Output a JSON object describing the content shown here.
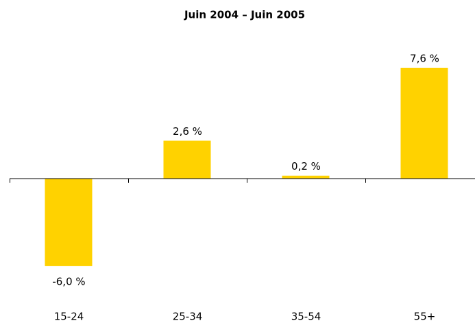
{
  "chart_data": {
    "type": "bar",
    "title": "Juin 2004 – Juin 2005",
    "categories": [
      "15-24",
      "25-34",
      "35-54",
      "55+"
    ],
    "values": [
      -6.0,
      2.6,
      0.2,
      7.6
    ],
    "value_labels": [
      "-6,0 %",
      "2,6 %",
      "0,2 %",
      "7,6 %"
    ],
    "color": "#ffd200"
  }
}
